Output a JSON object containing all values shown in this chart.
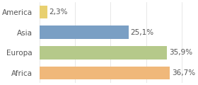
{
  "categories": [
    "America",
    "Asia",
    "Europa",
    "Africa"
  ],
  "values": [
    2.3,
    25.1,
    35.9,
    36.7
  ],
  "labels": [
    "2,3%",
    "25,1%",
    "35,9%",
    "36,7%"
  ],
  "bar_colors": [
    "#e8d070",
    "#7a9fc4",
    "#b5c98a",
    "#f0b87a"
  ],
  "background_color": "#ffffff",
  "xlim": [
    0,
    44
  ],
  "label_fontsize": 7.5,
  "tick_fontsize": 7.5
}
